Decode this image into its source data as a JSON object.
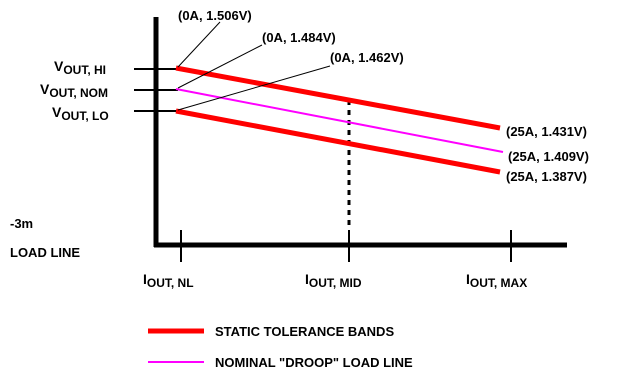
{
  "colors": {
    "tolerance_band": "#ff0000",
    "droop_line": "#ff00ff",
    "axis": "#000000"
  },
  "annotations": {
    "hi_start": "(0A, 1.506V)",
    "nom_start": "(0A, 1.484V)",
    "lo_start": "(0A, 1.462V)",
    "hi_end": "(25A, 1.431V)",
    "nom_end": "(25A, 1.409V)",
    "lo_end": "(25A, 1.387V)"
  },
  "y_labels": {
    "hi": {
      "main": "V",
      "sub": "OUT, HI"
    },
    "nom": {
      "main": "V",
      "sub": "OUT, NOM"
    },
    "lo": {
      "main": "V",
      "sub": "OUT, LO"
    }
  },
  "x_labels": {
    "nl": {
      "main": "I",
      "sub": "OUT, NL"
    },
    "mid": {
      "main": "I",
      "sub": "OUT, MID"
    },
    "max": {
      "main": "I",
      "sub": "OUT, MAX"
    }
  },
  "load_line": {
    "value": "-3m",
    "label": "LOAD LINE"
  },
  "legend": {
    "tolerance": "STATIC TOLERANCE BANDS",
    "droop": "NOMINAL \"DROOP\" LOAD LINE"
  }
}
